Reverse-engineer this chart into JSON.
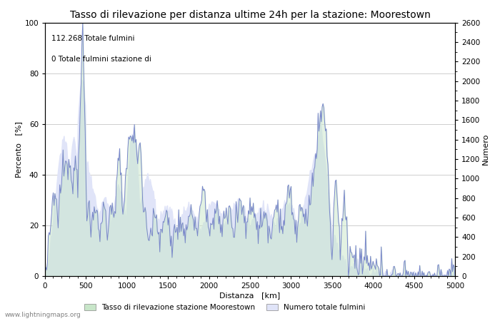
{
  "title": "Tasso di rilevazione per distanza ultime 24h per la stazione: Moorestown",
  "xlabel": "Distanza   [km]",
  "ylabel_left": "Percento   [%]",
  "ylabel_right": "Numero",
  "annotation_line1": "112.268 Totale fulmini",
  "annotation_line2": "0 Totale fulmini stazione di",
  "xlim": [
    0,
    5000
  ],
  "ylim_left": [
    0,
    100
  ],
  "ylim_right": [
    0,
    2600
  ],
  "xticks": [
    0,
    500,
    1000,
    1500,
    2000,
    2500,
    3000,
    3500,
    4000,
    4500,
    5000
  ],
  "yticks_left": [
    0,
    20,
    40,
    60,
    80,
    100
  ],
  "yticks_right": [
    0,
    200,
    400,
    600,
    800,
    1000,
    1200,
    1400,
    1600,
    1800,
    2000,
    2200,
    2400,
    2600
  ],
  "fill_color_detection": "#c8e6c9",
  "fill_color_lightning": "#e0e4f8",
  "line_color": "#7986cb",
  "background_color": "#ffffff",
  "grid_color": "#bbbbbb",
  "legend_label_detection": "Tasso di rilevazione stazione Moorestown",
  "legend_label_lightning": "Numero totale fulmini",
  "watermark": "www.lightningmaps.org",
  "title_fontsize": 10,
  "label_fontsize": 8,
  "tick_fontsize": 7.5,
  "annotation_fontsize": 7.5
}
